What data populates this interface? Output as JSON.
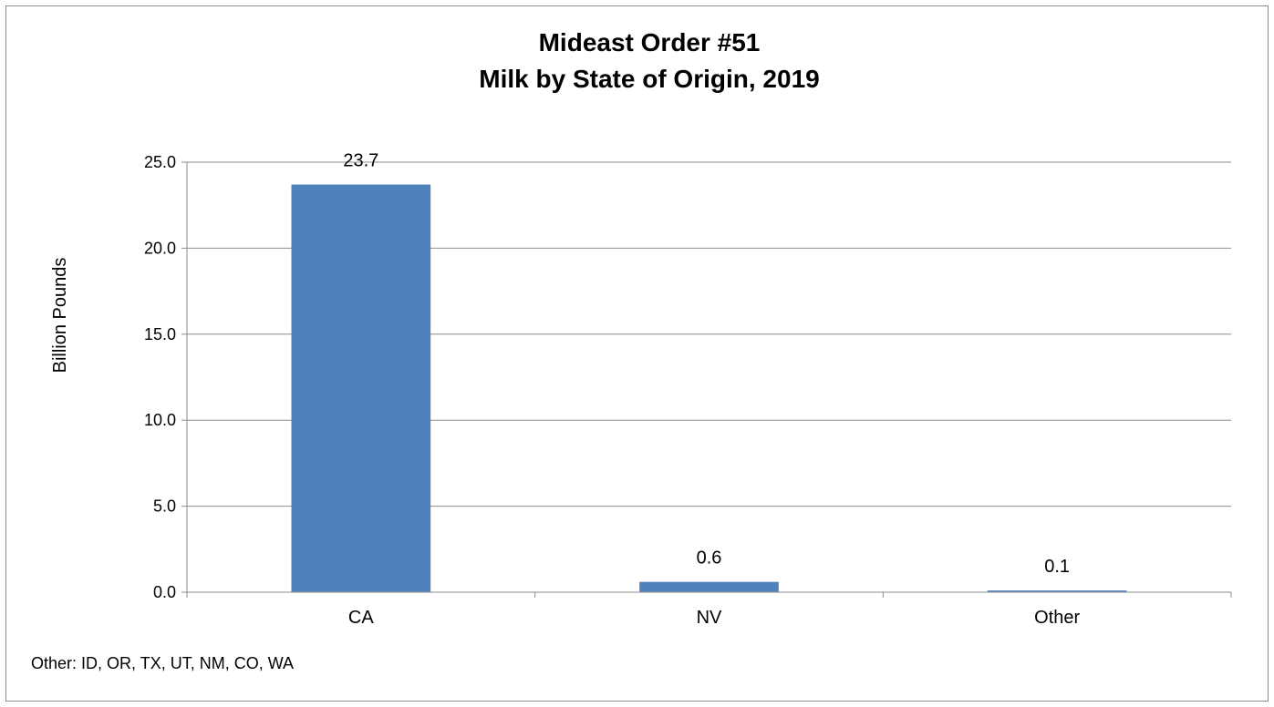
{
  "chart_data": {
    "type": "bar",
    "title": "Mideast Order #51",
    "subtitle": "Milk by State of Origin, 2019",
    "xlabel": "",
    "ylabel": "Billion Pounds",
    "categories": [
      "CA",
      "NV",
      "Other"
    ],
    "values": [
      23.7,
      0.6,
      0.1
    ],
    "data_labels": [
      "23.7",
      "0.6",
      "0.1"
    ],
    "ylim": [
      0,
      25
    ],
    "yticks": [
      0,
      5,
      10,
      15,
      20,
      25
    ],
    "ytick_labels": [
      "0.0",
      "5.0",
      "10.0",
      "15.0",
      "20.0",
      "25.0"
    ],
    "grid": true,
    "legend": "none",
    "bar_color": "#4f81bd"
  },
  "footnote": "Other: ID, OR, TX, UT, NM, CO, WA"
}
